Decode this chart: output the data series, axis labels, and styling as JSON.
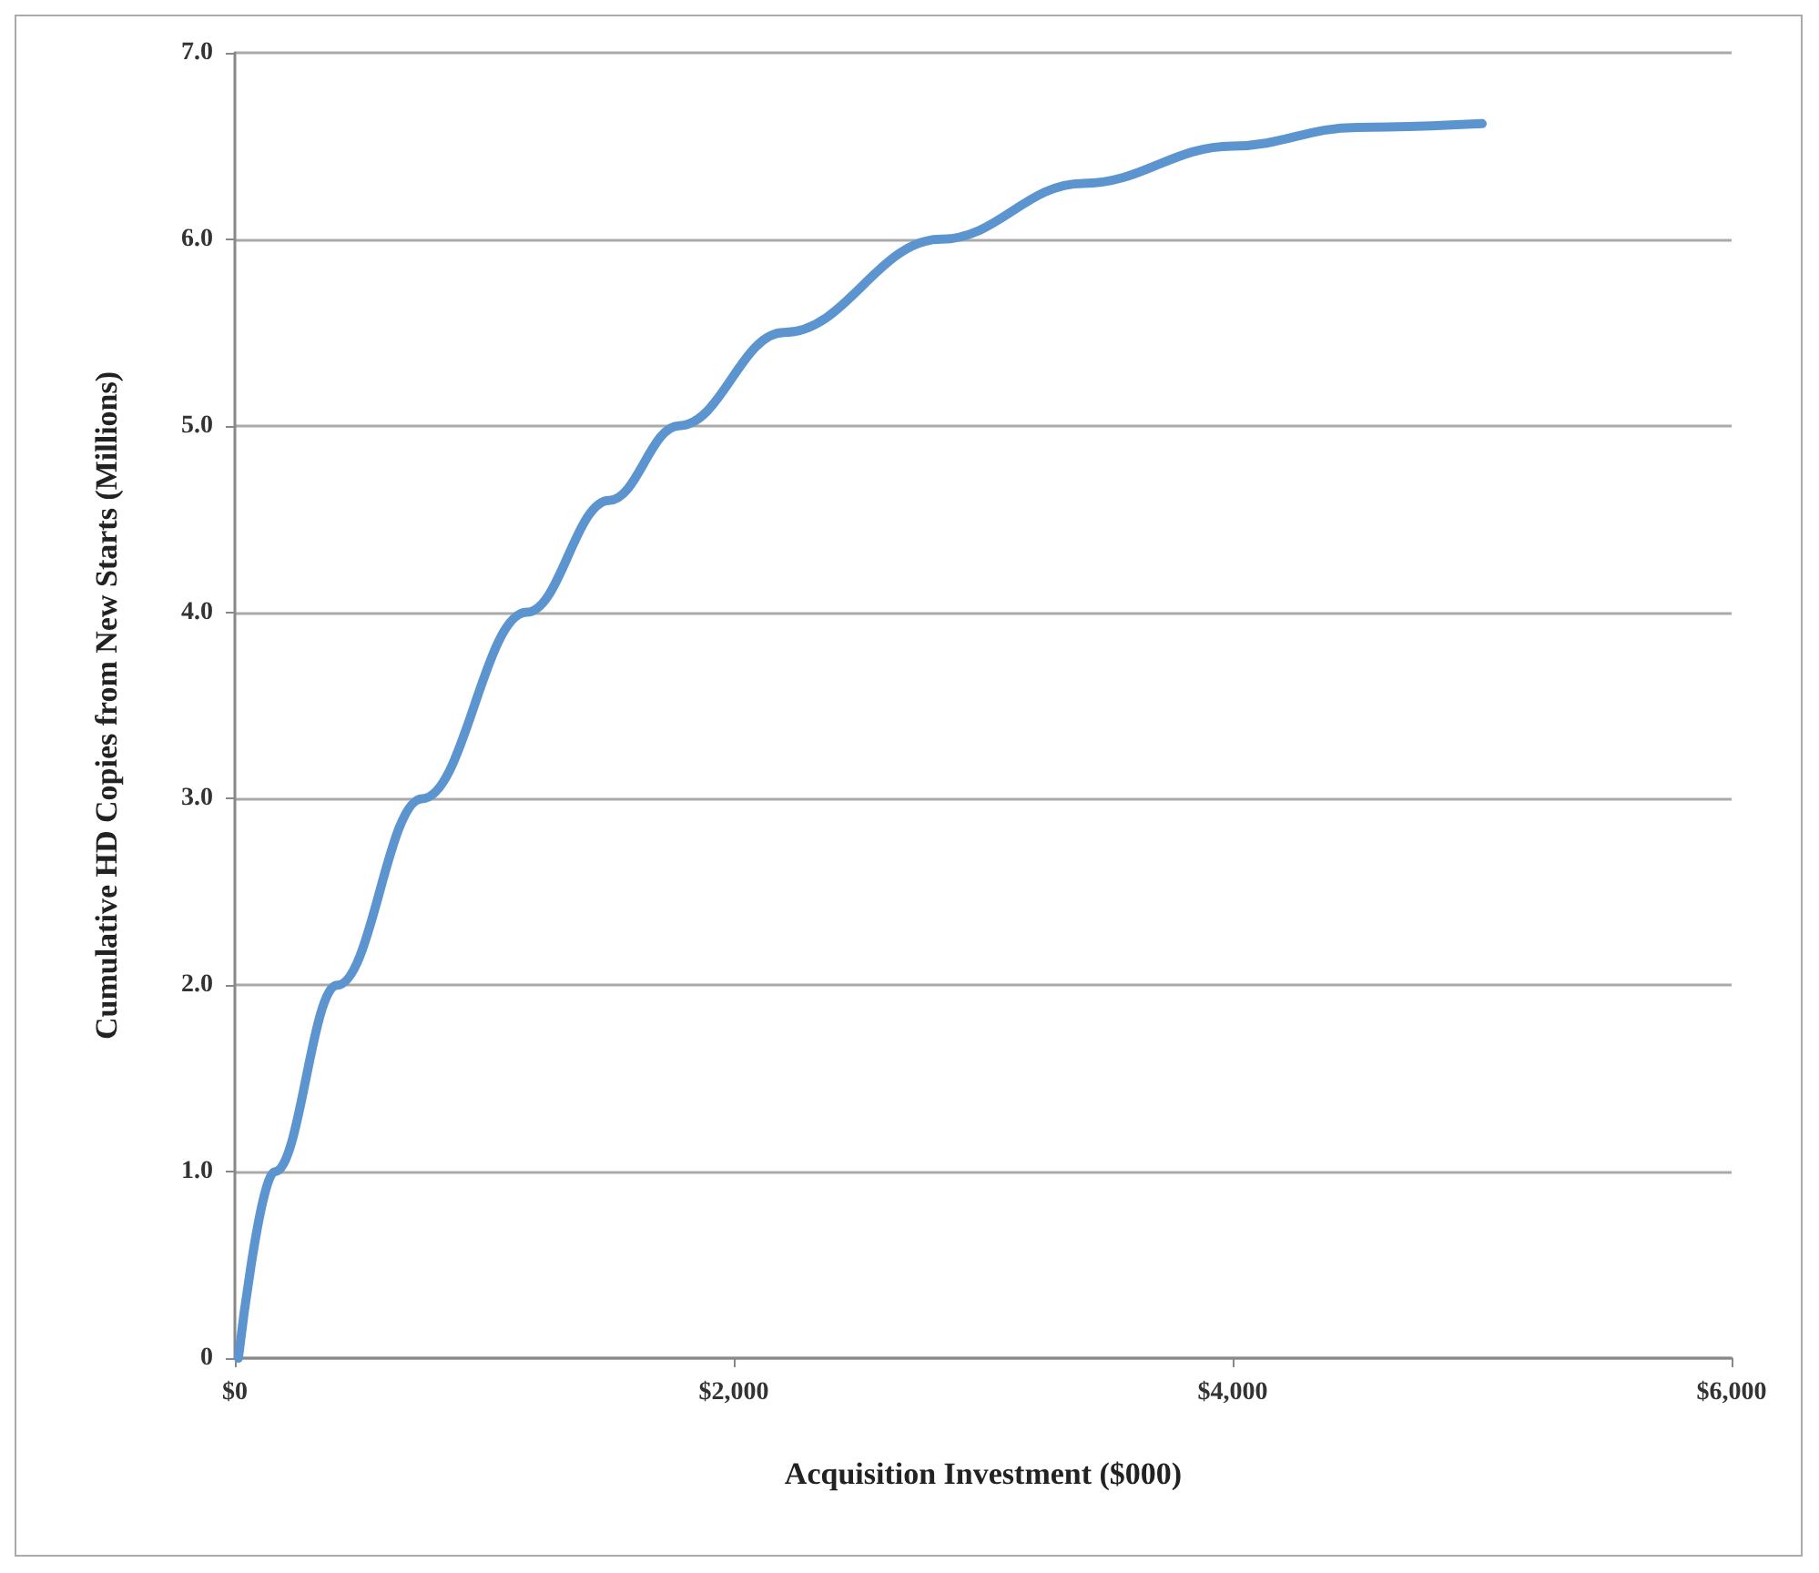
{
  "chart_data": {
    "type": "line",
    "xlabel": "Acquisition Investment ($000)",
    "ylabel": "Cumulative HD Copies from New Starts (Millions)",
    "x": [
      14,
      160,
      410,
      750,
      1170,
      1500,
      1780,
      2200,
      2830,
      3400,
      4000,
      4500,
      5000
    ],
    "series": [
      {
        "color": "#5b94cf",
        "values": [
          0,
          1.0,
          2.0,
          3.0,
          4.0,
          4.6,
          5.0,
          5.5,
          6.0,
          6.3,
          6.5,
          6.6,
          6.62
        ]
      }
    ],
    "xlim": [
      0,
      6000
    ],
    "xticks": [
      {
        "value": 0,
        "label": "$0"
      },
      {
        "value": 2000,
        "label": "$2,000"
      },
      {
        "value": 4000,
        "label": "$4,000"
      },
      {
        "value": 6000,
        "label": "$6,000"
      }
    ],
    "ylim": [
      0,
      7
    ],
    "yticks": [
      {
        "value": 0,
        "label": "0"
      },
      {
        "value": 1,
        "label": "1.0"
      },
      {
        "value": 2,
        "label": "2.0"
      },
      {
        "value": 3,
        "label": "3.0"
      },
      {
        "value": 4,
        "label": "4.0"
      },
      {
        "value": 5,
        "label": "5.0"
      },
      {
        "value": 6,
        "label": "6.0"
      },
      {
        "value": 7,
        "label": "7.0"
      }
    ],
    "grid": "y",
    "marker": "none",
    "line_style": "solid"
  }
}
